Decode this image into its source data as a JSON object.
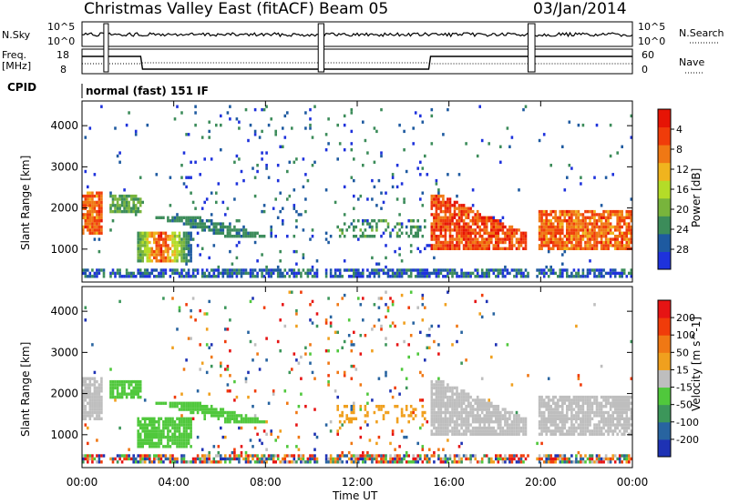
{
  "header": {
    "title": "Christmas Valley East (fitACF)",
    "beam": "Beam 05",
    "date": "03/Jan/2014"
  },
  "params": {
    "nsky_label": "N.Sky",
    "nsky_ticks": [
      "10^5",
      "10^0"
    ],
    "nsearch_label": "N.Search",
    "freq_label_1": "Freq.",
    "freq_label_2": "[MHz]",
    "freq_ticks": [
      "18",
      "8"
    ],
    "nave_ticks": [
      "60",
      "0"
    ],
    "nave_label": "Nave",
    "cpid_label": "CPID",
    "cpid_value": "normal (fast) 151 IF"
  },
  "chart_data": [
    {
      "type": "heatmap",
      "name": "power-panel",
      "ylabel": "Slant Range [km]",
      "ylim": [
        200,
        4600
      ],
      "yticks": [
        "1000",
        "2000",
        "3000",
        "4000"
      ],
      "xlim_hours": [
        0,
        24
      ],
      "colorbar": {
        "label": "Power [dB]",
        "ticks": [
          "4",
          "8",
          "12",
          "16",
          "20",
          "24",
          "28"
        ],
        "colors": [
          "#1e32dc",
          "#1e5aa0",
          "#3c8c5a",
          "#78b43c",
          "#b4dc28",
          "#f0b41e",
          "#f07814",
          "#f03c0a",
          "#e61405"
        ]
      }
    },
    {
      "type": "heatmap",
      "name": "velocity-panel",
      "ylabel": "Slant Range [km]",
      "ylim": [
        200,
        4600
      ],
      "yticks": [
        "1000",
        "2000",
        "3000",
        "4000"
      ],
      "xlim_hours": [
        0,
        24
      ],
      "xticks": [
        "00:00",
        "04:00",
        "08:00",
        "12:00",
        "16:00",
        "20:00",
        "00:00"
      ],
      "xlabel": "Time UT",
      "colorbar": {
        "label": "Velocity [m s^-1]",
        "ticks": [
          "200",
          "100",
          "50",
          "15",
          "-15",
          "-50",
          "-100",
          "-200"
        ],
        "colors": [
          "#1e32b4",
          "#2864a0",
          "#3c965a",
          "#50c83c",
          "#bebebe",
          "#f0a01e",
          "#f07814",
          "#f03c0a",
          "#e61414"
        ]
      }
    }
  ]
}
